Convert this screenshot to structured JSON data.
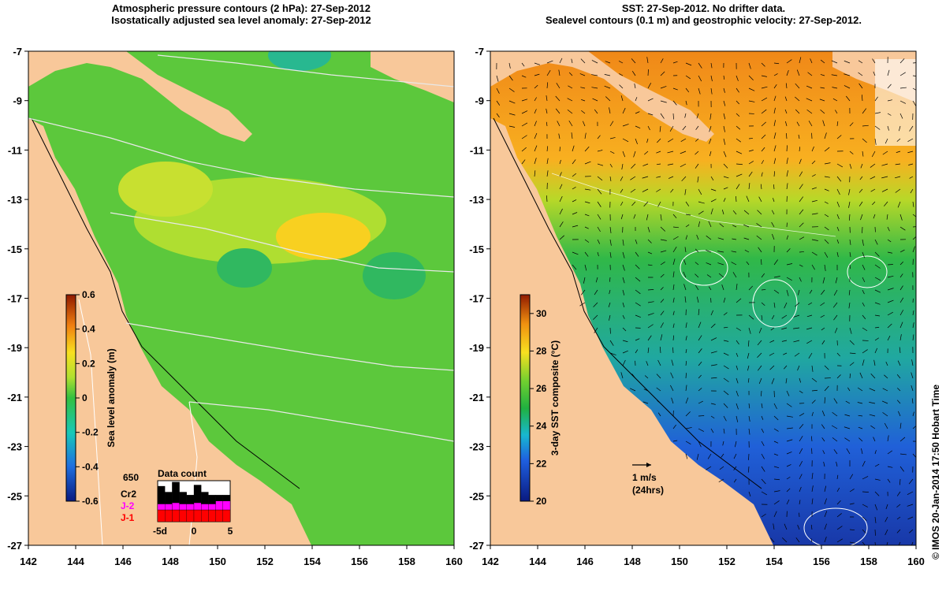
{
  "left_panel": {
    "title_line1": "Atmospheric pressure contours (2 hPa): 27-Sep-2012",
    "title_line2": "Isostatically adjusted sea level anomaly: 27-Sep-2012"
  },
  "right_panel": {
    "title_line1": "SST: 27-Sep-2012. No drifter data.",
    "title_line2": "Sealevel contours (0.1 m) and geostrophic velocity: 27-Sep-2012."
  },
  "credit": "© IMOS 20-Jan-2014 17:50 Hobart Time",
  "colors": {
    "land": "#f8c89a",
    "sea_mid": "#5cc83c",
    "sea_high": "#f0d020",
    "sst_warm": "#f0a020",
    "sst_cool": "#1848c0"
  },
  "chart_data": [
    {
      "type": "heatmap",
      "title": "Isostatically adjusted sea level anomaly: 27-Sep-2012",
      "x_ticks": [
        "142",
        "144",
        "146",
        "148",
        "150",
        "152",
        "154",
        "156",
        "158",
        "160"
      ],
      "y_ticks": [
        "-7",
        "-9",
        "-11",
        "-13",
        "-15",
        "-17",
        "-19",
        "-21",
        "-23",
        "-25",
        "-27"
      ],
      "xlim": [
        142,
        160
      ],
      "ylim": [
        -27,
        -7
      ],
      "colorbar": {
        "label": "Sea level anomaly (m)",
        "ticks": [
          "0.6",
          "0.4",
          "0.2",
          "0",
          "-0.2",
          "-0.4",
          "-0.6"
        ],
        "range": [
          -0.6,
          0.6
        ]
      },
      "inset": {
        "title": "Data count",
        "max_label": "650",
        "legend": [
          "Cr2",
          "J-2",
          "J-1"
        ],
        "legend_colors": [
          "#000000",
          "#ff00ff",
          "#ff0000"
        ],
        "x_ticks": [
          "-5d",
          "0",
          "5"
        ],
        "series": [
          {
            "name": "J-1",
            "values": [
              2,
              2,
              2,
              2,
              2,
              2,
              2,
              2,
              2,
              2
            ]
          },
          {
            "name": "J-2",
            "values": [
              1,
              1,
              1.2,
              1,
              1,
              1.2,
              1,
              1,
              1.5,
              1.5
            ]
          },
          {
            "name": "Cr2",
            "values": [
              3,
              2,
              3.5,
              2,
              1.5,
              3,
              2,
              1.5,
              1,
              1
            ]
          }
        ]
      }
    },
    {
      "type": "heatmap",
      "title": "SST: 27-Sep-2012. No drifter data.",
      "x_ticks": [
        "142",
        "144",
        "146",
        "148",
        "150",
        "152",
        "154",
        "156",
        "158",
        "160"
      ],
      "y_ticks": [
        "-7",
        "-9",
        "-11",
        "-13",
        "-15",
        "-17",
        "-19",
        "-21",
        "-23",
        "-25",
        "-27"
      ],
      "xlim": [
        142,
        160
      ],
      "ylim": [
        -27,
        -7
      ],
      "colorbar": {
        "label": "3-day SST composite (°C)",
        "ticks": [
          "30",
          "28",
          "26",
          "24",
          "22",
          "20"
        ],
        "range": [
          20,
          31
        ]
      },
      "vector_key": {
        "line1": "1 m/s",
        "line2": "(24hrs)"
      }
    }
  ]
}
